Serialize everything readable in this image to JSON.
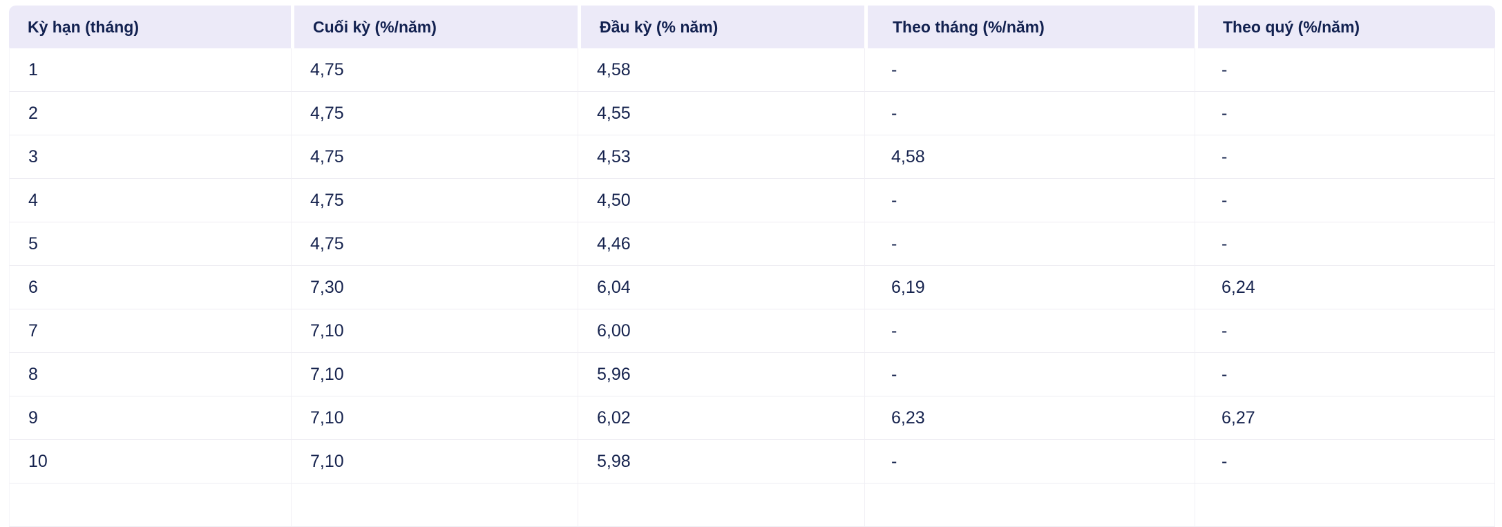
{
  "colors": {
    "page-bg": "#ffffff",
    "header-bg": "#eceaf8",
    "header-text": "#122150",
    "cell-text": "#16234e",
    "row-border": "#edecf2",
    "col-border": "#f1f0f5"
  },
  "table": {
    "columns": [
      {
        "label": "Kỳ hạn (tháng)"
      },
      {
        "label": "Cuối kỳ (%/năm)"
      },
      {
        "label": "Đầu kỳ (% năm)"
      },
      {
        "label": "Theo tháng (%/năm)"
      },
      {
        "label": "Theo quý (%/năm)"
      }
    ],
    "rows": [
      [
        "1",
        "4,75",
        "4,58",
        "-",
        "-"
      ],
      [
        "2",
        "4,75",
        "4,55",
        "-",
        "-"
      ],
      [
        "3",
        "4,75",
        "4,53",
        "4,58",
        "-"
      ],
      [
        "4",
        "4,75",
        "4,50",
        "-",
        "-"
      ],
      [
        "5",
        "4,75",
        "4,46",
        "-",
        "-"
      ],
      [
        "6",
        "7,30",
        "6,04",
        "6,19",
        "6,24"
      ],
      [
        "7",
        "7,10",
        "6,00",
        "-",
        "-"
      ],
      [
        "8",
        "7,10",
        "5,96",
        "-",
        "-"
      ],
      [
        "9",
        "7,10",
        "6,02",
        "6,23",
        "6,27"
      ],
      [
        "10",
        "7,10",
        "5,98",
        "-",
        "-"
      ],
      [
        "",
        "",
        "",
        "",
        ""
      ]
    ]
  },
  "chart_data": {
    "type": "table",
    "title": "",
    "columns": [
      "Kỳ hạn (tháng)",
      "Cuối kỳ (%/năm)",
      "Đầu kỳ (% năm)",
      "Theo tháng (%/năm)",
      "Theo quý (%/năm)"
    ],
    "rows": [
      [
        "1",
        "4,75",
        "4,58",
        "-",
        "-"
      ],
      [
        "2",
        "4,75",
        "4,55",
        "-",
        "-"
      ],
      [
        "3",
        "4,75",
        "4,53",
        "4,58",
        "-"
      ],
      [
        "4",
        "4,75",
        "4,50",
        "-",
        "-"
      ],
      [
        "5",
        "4,75",
        "4,46",
        "-",
        "-"
      ],
      [
        "6",
        "7,30",
        "6,04",
        "6,19",
        "6,24"
      ],
      [
        "7",
        "7,10",
        "6,00",
        "-",
        "-"
      ],
      [
        "8",
        "7,10",
        "5,96",
        "-",
        "-"
      ],
      [
        "9",
        "7,10",
        "6,02",
        "6,23",
        "6,27"
      ],
      [
        "10",
        "7,10",
        "5,98",
        "-",
        "-"
      ]
    ]
  }
}
